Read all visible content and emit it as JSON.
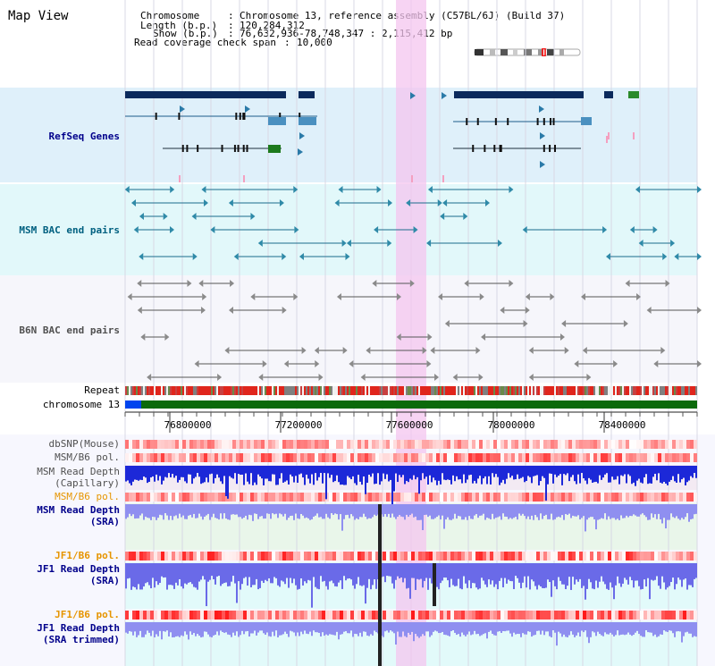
{
  "view": {
    "title": "Map View",
    "info": [
      {
        "key": "Chromosome",
        "value": "Chromosome 13, reference assembly (C57BL/6J) (Build 37)"
      },
      {
        "key": "Length (b.p.)",
        "value": "120,284,312"
      },
      {
        "key": "Show (b.p.)",
        "value": "76,632,936-78,748,347 : 2,115,412 bp"
      },
      {
        "key": "Read coverage check span",
        "value": "10,000"
      }
    ]
  },
  "tracks": {
    "refseq": {
      "label": "RefSeq Genes",
      "color": "#00008b"
    },
    "msm_bac": {
      "label": "MSM BAC end pairs",
      "color": "#006080"
    },
    "b6n_bac": {
      "label": "B6N BAC end pairs",
      "color": "#505050"
    },
    "repeat": {
      "label": "Repeat"
    },
    "chromosome": {
      "label": "chromosome 13"
    },
    "axis_ticks": [
      "76800000",
      "77200000",
      "77600000",
      "78000000",
      "78400000"
    ],
    "dbsnp": {
      "label": "dbSNP(Mouse)"
    },
    "msm_b6_pol_1": {
      "label": "MSM/B6 pol."
    },
    "msm_depth_cap": {
      "label1": "MSM Read Depth",
      "label2": "(Capillary)"
    },
    "msm_b6_pol_2": {
      "label": "MSM/B6 pol."
    },
    "msm_depth_sra": {
      "label1": "MSM Read Depth",
      "label2": "(SRA)"
    },
    "jf1_b6_pol_1": {
      "label": "JF1/B6 pol."
    },
    "jf1_depth_sra": {
      "label1": "JF1 Read Depth",
      "label2": "(SRA)"
    },
    "jf1_b6_pol_2": {
      "label": "JF1/B6 pol."
    },
    "jf1_depth_trim": {
      "label1": "JF1 Read Depth",
      "label2": "(SRA trimmed)"
    }
  }
}
